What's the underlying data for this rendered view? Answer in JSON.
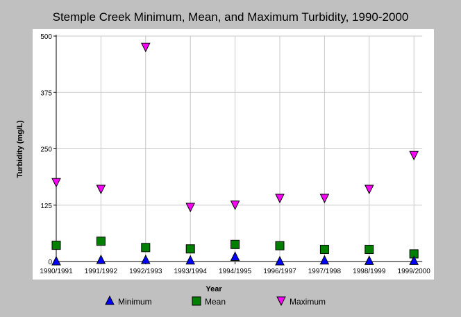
{
  "chart_data": {
    "type": "scatter",
    "title": "Stemple Creek Minimum, Mean, and Maximum Turbidity, 1990-2000",
    "xlabel": "Year",
    "ylabel": "Turbidity (mg/L)",
    "categories": [
      "1990/1991",
      "1991/1992",
      "1992/1993",
      "1993/1994",
      "1994/1995",
      "1996/1997",
      "1997/1998",
      "1998/1999",
      "1999/2000"
    ],
    "ylim": [
      0,
      500
    ],
    "yticks": [
      "0",
      "125",
      "250",
      "375",
      "500"
    ],
    "grid": true,
    "legend_position": "bottom",
    "series": [
      {
        "name": "Minimum",
        "marker": "triangle-up",
        "color": "#0000ff",
        "values": [
          0,
          3,
          3,
          2,
          10,
          0,
          2,
          1,
          1
        ]
      },
      {
        "name": "Mean",
        "marker": "square",
        "color": "#008000",
        "values": [
          36,
          45,
          31,
          28,
          38,
          35,
          27,
          27,
          17
        ]
      },
      {
        "name": "Maximum",
        "marker": "triangle-down",
        "color": "#ff00ff",
        "values": [
          175,
          160,
          475,
          120,
          125,
          140,
          140,
          160,
          235
        ]
      }
    ]
  }
}
